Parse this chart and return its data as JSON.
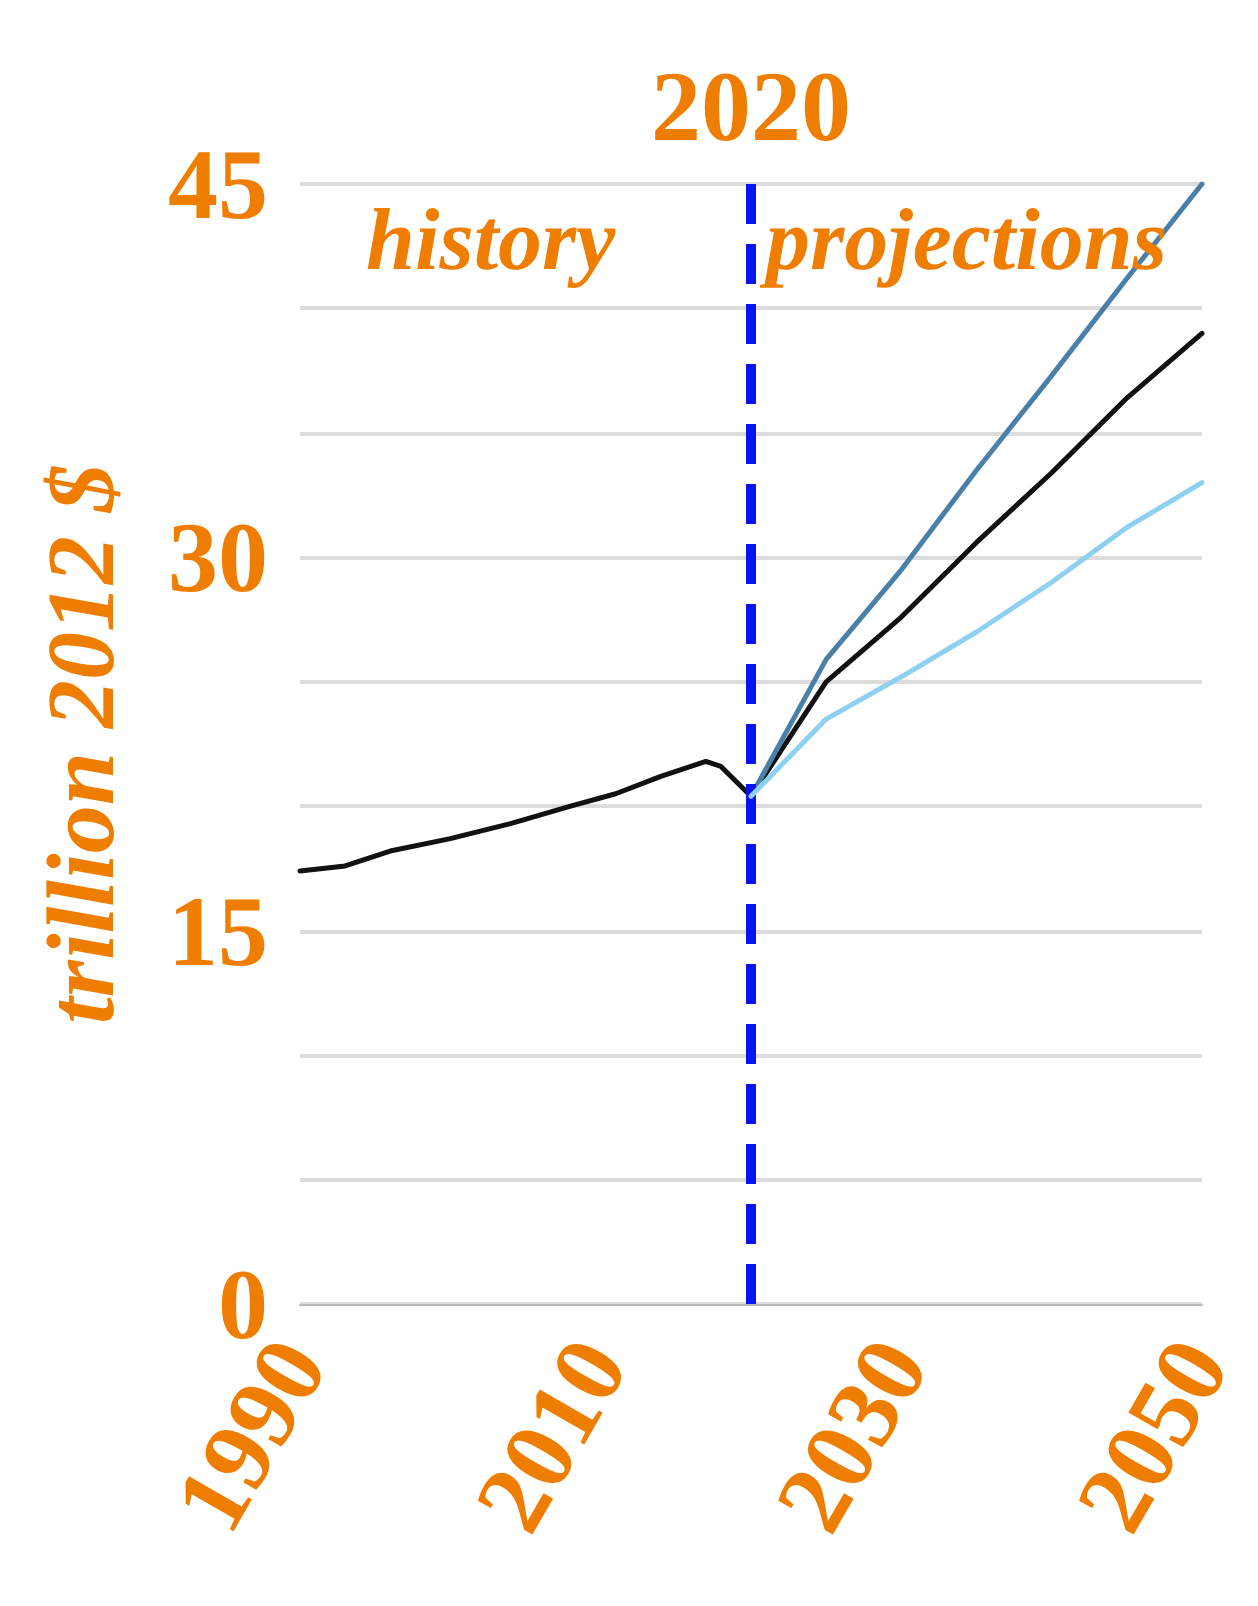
{
  "chart_data": {
    "type": "line",
    "ylabel": "trillion 2012 $",
    "annotations": [
      "history",
      "projections"
    ],
    "xlim": [
      1990,
      2050
    ],
    "xticks": [
      1990,
      2010,
      2030,
      2050
    ],
    "ylim": [
      0,
      45
    ],
    "yticks": [
      0,
      {
        "value": 5,
        "label": null
      },
      {
        "value": 10,
        "label": null
      },
      15,
      {
        "value": 20,
        "label": null
      },
      {
        "value": 25,
        "label": null
      },
      30,
      {
        "value": 35,
        "label": null
      },
      {
        "value": 40,
        "label": null
      },
      45
    ],
    "grid": "y",
    "marker": "none",
    "line_style": "solid",
    "ref_lines": [
      {
        "axis": "x",
        "value": 2020,
        "label": "2020",
        "color": "#0a14f0",
        "line_style": "dashed"
      }
    ],
    "series": [
      {
        "color": "#111111",
        "x": [
          1990,
          1993,
          1996,
          2000,
          2004,
          2008,
          2011,
          2014,
          2017,
          2018,
          2020,
          2025,
          2030,
          2035,
          2040,
          2045,
          2050
        ],
        "values": [
          17.4,
          17.6,
          18.2,
          18.7,
          19.3,
          20.0,
          20.5,
          21.2,
          21.8,
          21.6,
          20.4,
          25.0,
          27.6,
          30.6,
          33.4,
          36.4,
          39.0
        ]
      },
      {
        "color": "#4a7fa8",
        "x": [
          2020,
          2025,
          2030,
          2035,
          2040,
          2045,
          2050
        ],
        "values": [
          20.4,
          25.9,
          29.5,
          33.5,
          37.3,
          41.2,
          45.0
        ]
      },
      {
        "color": "#8fd0f0",
        "x": [
          2020,
          2025,
          2030,
          2035,
          2040,
          2045,
          2050
        ],
        "values": [
          20.4,
          23.5,
          25.2,
          27.0,
          29.0,
          31.2,
          33.0
        ]
      }
    ]
  }
}
